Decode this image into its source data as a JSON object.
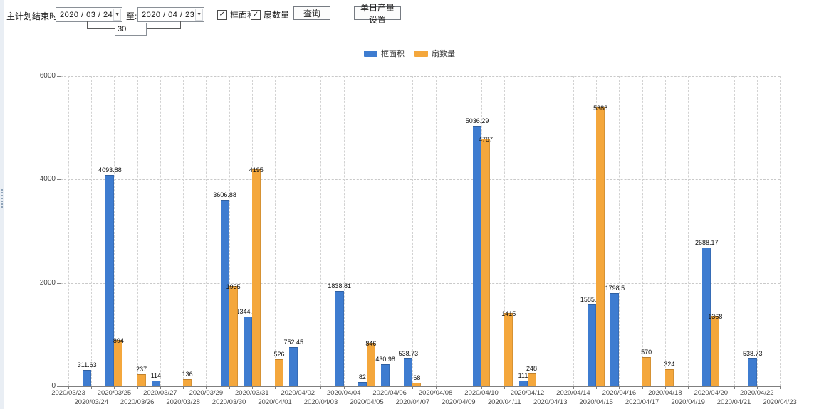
{
  "toolbar": {
    "date_label": "主计划结束时间:",
    "date_from": "2020 / 03 / 24",
    "to_label": "至:",
    "date_to": "2020 / 04 / 23",
    "days_value": "30",
    "checkbox_area_label": "框面积",
    "checkbox_fans_label": "扇数量",
    "query_button": "查询",
    "daily_output_button": "单日产量设置",
    "dropdown_arrow": "▼",
    "check_glyph": "✓"
  },
  "legend": {
    "items": [
      {
        "label": "框面积",
        "color": "#3E7CD0"
      },
      {
        "label": "扇数量",
        "color": "#F4A73C"
      }
    ]
  },
  "chart_data": {
    "type": "bar",
    "title": "",
    "xlabel": "",
    "ylabel": "",
    "ylim": [
      0,
      6000
    ],
    "yticks": [
      0,
      2000,
      4000,
      6000
    ],
    "grid": true,
    "legend_position": "top",
    "categories": [
      "2020/03/23",
      "2020/03/24",
      "2020/03/25",
      "2020/03/26",
      "2020/03/27",
      "2020/03/28",
      "2020/03/29",
      "2020/03/30",
      "2020/03/31",
      "2020/04/01",
      "2020/04/02",
      "2020/04/03",
      "2020/04/04",
      "2020/04/05",
      "2020/04/06",
      "2020/04/07",
      "2020/04/08",
      "2020/04/09",
      "2020/04/10",
      "2020/04/11",
      "2020/04/12",
      "2020/04/13",
      "2020/04/14",
      "2020/04/15",
      "2020/04/16",
      "2020/04/17",
      "2020/04/18",
      "2020/04/19",
      "2020/04/20",
      "2020/04/21",
      "2020/04/22",
      "2020/04/23"
    ],
    "series": [
      {
        "name": "框面积",
        "color": "#3E7CD0",
        "values": [
          null,
          311.63,
          4093.88,
          null,
          114,
          null,
          null,
          3606.88,
          1344.95,
          null,
          752.45,
          null,
          1838.81,
          82,
          430.98,
          538.73,
          null,
          null,
          5036.29,
          null,
          111,
          null,
          null,
          1585.96,
          1798.5,
          null,
          null,
          null,
          2688.17,
          null,
          538.73,
          null
        ]
      },
      {
        "name": "扇数量",
        "color": "#F4A73C",
        "values": [
          null,
          null,
          894,
          237,
          null,
          136,
          null,
          1935,
          4195,
          526,
          null,
          null,
          null,
          846,
          null,
          68,
          null,
          null,
          4787,
          1415,
          248,
          null,
          null,
          5388,
          null,
          570,
          324,
          null,
          1368,
          null,
          null,
          null
        ]
      }
    ]
  }
}
